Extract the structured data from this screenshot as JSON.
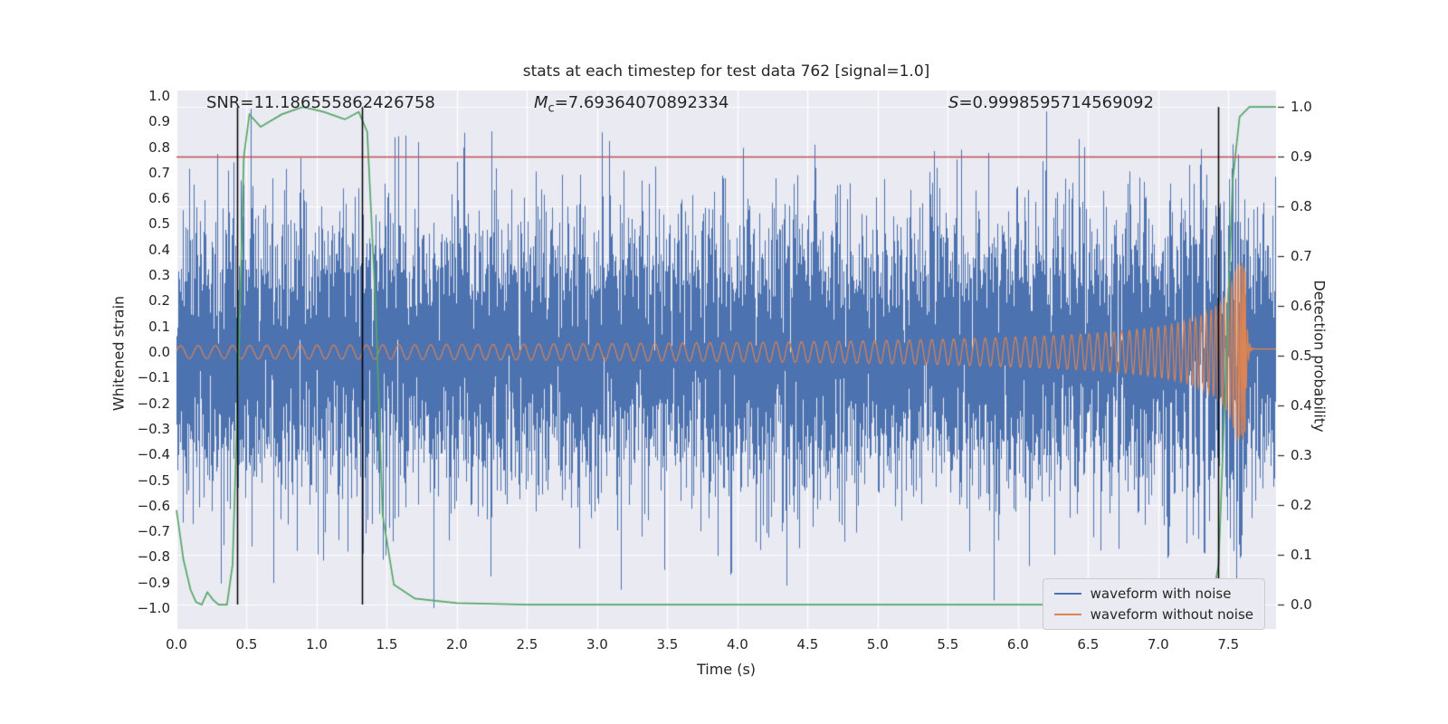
{
  "figure": {
    "title": "stats at each timestep for test data 762 [signal=1.0]",
    "annotations": {
      "snr": "SNR=11.186555862426758",
      "mc_symbol": "M",
      "mc_sub": "c",
      "mc_value": "=7.69364070892334",
      "s_symbol": "S",
      "s_value": "=0.9998595714569092"
    },
    "xlabel": "Time (s)",
    "ylabel_left": "Whitened strain",
    "ylabel_right": "Detection probability",
    "legend": {
      "position": "lower right",
      "items": [
        {
          "label": "waveform with noise",
          "color": "#4c72b0"
        },
        {
          "label": "waveform without noise",
          "color": "#dd8452"
        }
      ]
    }
  },
  "chart_data": {
    "type": "line",
    "title": "stats at each timestep for test data 762 [signal=1.0]",
    "xlabel": "Time (s)",
    "ylabel_left": "Whitened strain",
    "ylabel_right": "Detection probability",
    "xlim": [
      0.0,
      7.84
    ],
    "ylim_left": [
      -1.081,
      1.021
    ],
    "ylim_right": [
      -0.049,
      1.033
    ],
    "plot_background": "#eaeaf2",
    "grid": {
      "show": true,
      "color": "#ffffff"
    },
    "text_color": "#262626",
    "xticks": {
      "values": [
        0.0,
        0.5,
        1.0,
        1.5,
        2.0,
        2.5,
        3.0,
        3.5,
        4.0,
        4.5,
        5.0,
        5.5,
        6.0,
        6.5,
        7.0,
        7.5
      ],
      "labels": [
        "0.0",
        "0.5",
        "1.0",
        "1.5",
        "2.0",
        "2.5",
        "3.0",
        "3.5",
        "4.0",
        "4.5",
        "5.0",
        "5.5",
        "6.0",
        "6.5",
        "7.0",
        "7.5"
      ]
    },
    "yticks_left": {
      "values": [
        1.0,
        0.9,
        0.8,
        0.7,
        0.6,
        0.5,
        0.4,
        0.3,
        0.2,
        0.1,
        0.0,
        -0.1,
        -0.2,
        -0.3,
        -0.4,
        -0.5,
        -0.6,
        -0.7,
        -0.8,
        -0.9,
        -1.0
      ],
      "labels": [
        "1.0",
        "0.9",
        "0.8",
        "0.7",
        "0.6",
        "0.5",
        "0.4",
        "0.3",
        "0.2",
        "0.1",
        "0.0",
        "−0.1",
        "−0.2",
        "−0.3",
        "−0.4",
        "−0.5",
        "−0.6",
        "−0.7",
        "−0.8",
        "−0.9",
        "−1.0"
      ]
    },
    "yticks_right": {
      "values": [
        1.0,
        0.9,
        0.8,
        0.7,
        0.6,
        0.5,
        0.4,
        0.3,
        0.2,
        0.1,
        0.0
      ],
      "labels": [
        "1.0",
        "0.9",
        "0.8",
        "0.7",
        "0.6",
        "0.5",
        "0.4",
        "0.3",
        "0.2",
        "0.1",
        "0.0"
      ]
    },
    "threshold_line": {
      "y": 0.9,
      "axis": "right",
      "color": "#c44e52"
    },
    "event_lines": {
      "x": [
        0.43,
        1.32,
        7.43
      ],
      "color": "#000000"
    },
    "series": [
      {
        "name": "waveform with noise",
        "type": "noise",
        "axis": "left",
        "color": "#4c72b0",
        "distribution": "gaussian",
        "std": 0.26,
        "samples_per_pixel": 8,
        "seed": 762,
        "clip": [
          -1.0,
          0.95
        ]
      },
      {
        "name": "waveform without noise",
        "type": "chirp",
        "axis": "left",
        "color": "#dd8452",
        "t_merger": 7.62,
        "amp_start": 0.025,
        "amp_peak": 0.35,
        "amp_exponent": -0.55,
        "f_start_hz": 8,
        "freq_exponent": -0.375,
        "f_max_hz": 80,
        "post_merger_level": 0.012
      },
      {
        "name": "detection probability",
        "type": "line",
        "axis": "right",
        "color": "#55a868",
        "points": [
          [
            0,
            0.19
          ],
          [
            0.05,
            0.09
          ],
          [
            0.1,
            0.03
          ],
          [
            0.14,
            0.005
          ],
          [
            0.18,
            0.0
          ],
          [
            0.22,
            0.025
          ],
          [
            0.26,
            0.01
          ],
          [
            0.3,
            0.0
          ],
          [
            0.36,
            0.0
          ],
          [
            0.4,
            0.08
          ],
          [
            0.44,
            0.45
          ],
          [
            0.48,
            0.9
          ],
          [
            0.52,
            0.985
          ],
          [
            0.6,
            0.96
          ],
          [
            0.75,
            0.985
          ],
          [
            0.9,
            1.0
          ],
          [
            1.05,
            0.99
          ],
          [
            1.2,
            0.975
          ],
          [
            1.3,
            0.99
          ],
          [
            1.36,
            0.95
          ],
          [
            1.42,
            0.6
          ],
          [
            1.47,
            0.18
          ],
          [
            1.55,
            0.04
          ],
          [
            1.7,
            0.012
          ],
          [
            2.0,
            0.003
          ],
          [
            2.5,
            0.0
          ],
          [
            7.38,
            0.0
          ],
          [
            7.43,
            0.08
          ],
          [
            7.48,
            0.45
          ],
          [
            7.53,
            0.85
          ],
          [
            7.58,
            0.98
          ],
          [
            7.65,
            1.0
          ],
          [
            7.84,
            1.0
          ]
        ]
      }
    ]
  }
}
